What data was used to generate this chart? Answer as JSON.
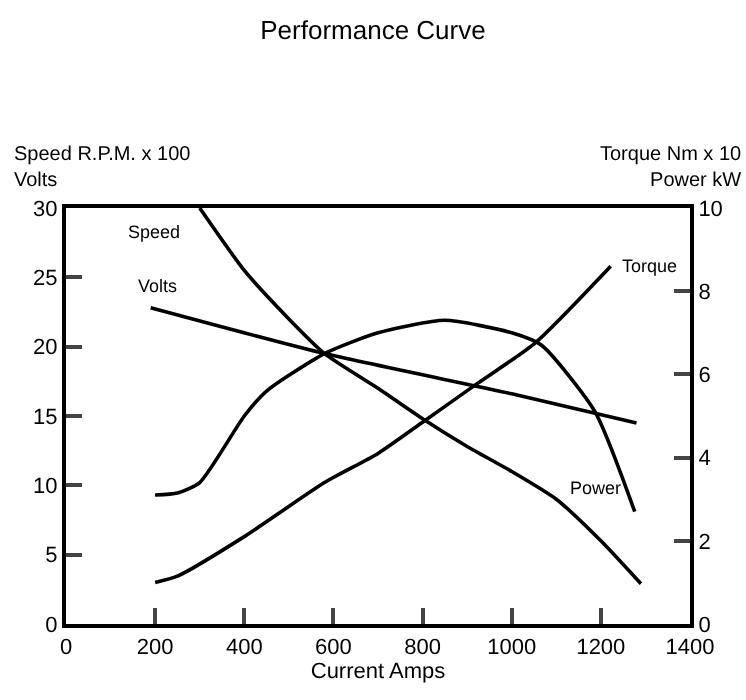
{
  "chart_data": {
    "type": "line",
    "title": "Performance Curve",
    "xlabel": "Current Amps",
    "ylabel": "Speed R.P.M. x 100\nVolts",
    "y2label": "Torque Nm x 10\nPower kW",
    "series": [
      {
        "name": "Speed",
        "color": "#000000",
        "x": [
          300,
          400,
          500,
          580,
          700,
          800,
          900,
          1000,
          1100,
          1200,
          1290
        ],
        "values": [
          30,
          25.5,
          22,
          19.5,
          17,
          14.8,
          12.8,
          11,
          9,
          6,
          2.9
        ]
      },
      {
        "name": "Volts",
        "color": "#000000",
        "x": [
          190,
          580,
          1000,
          1280
        ],
        "values": [
          22.8,
          19.5,
          16.6,
          14.5
        ]
      },
      {
        "name": "Torque",
        "color": "#000000",
        "axis": "y2",
        "x": [
          200,
          250,
          400,
          580,
          700,
          800,
          920,
          1053,
          1222
        ],
        "values": [
          1.0,
          1.15,
          2.1,
          3.4,
          4.1,
          4.85,
          5.76,
          6.76,
          8.6
        ]
      },
      {
        "name": "Power",
        "color": "#000000",
        "axis": "y2",
        "x": [
          200,
          250,
          300,
          400,
          450,
          580,
          700,
          850,
          1000,
          1067,
          1187,
          1276
        ],
        "values": [
          3.1,
          3.15,
          3.4,
          5.0,
          5.6,
          6.5,
          7.0,
          7.3,
          7.0,
          6.7,
          5.1,
          2.7
        ]
      }
    ],
    "xlim": [
      0,
      1400
    ],
    "xticks": [
      0,
      200,
      400,
      600,
      800,
      1000,
      1200,
      1400
    ],
    "ylim": [
      0,
      30
    ],
    "yticks": [
      0,
      5,
      10,
      15,
      20,
      25,
      30
    ],
    "y2lim": [
      0,
      10
    ],
    "y2ticks": [
      0,
      2,
      4,
      6,
      8,
      10
    ],
    "grid": false,
    "legend": false,
    "marker": "none",
    "line_style": "solid"
  }
}
